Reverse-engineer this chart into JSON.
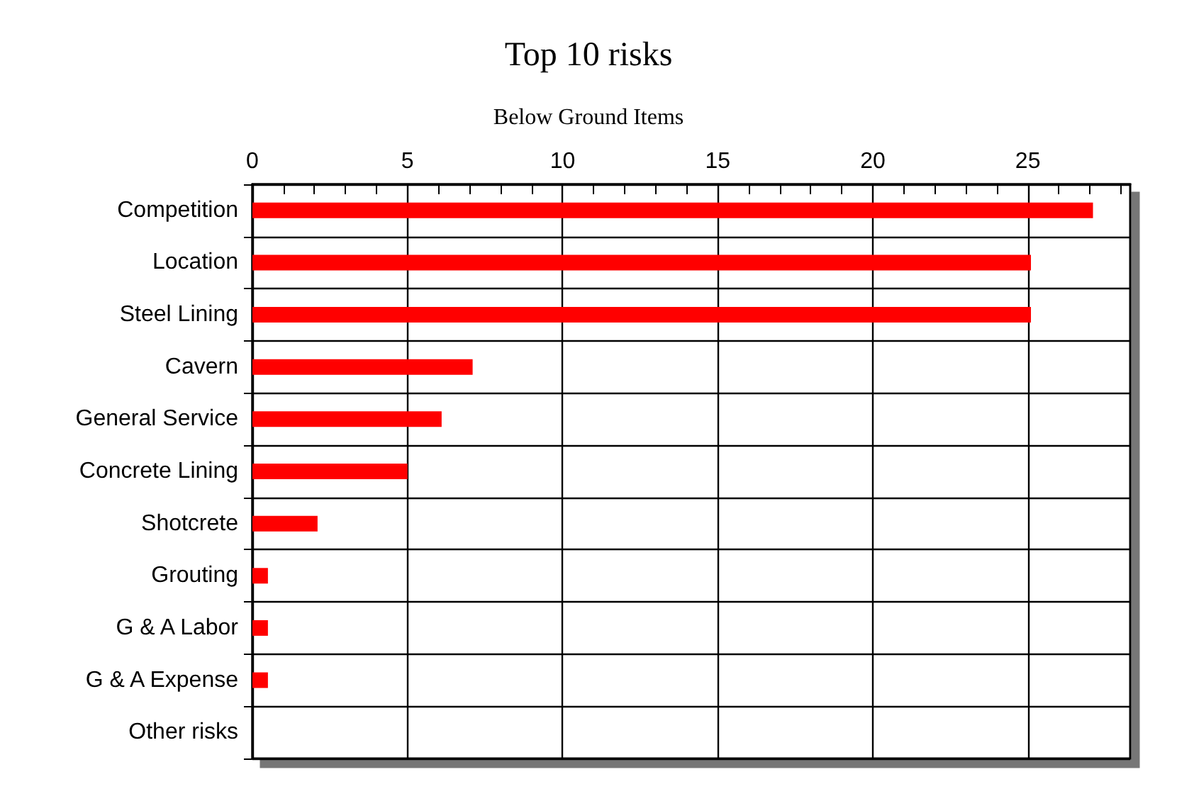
{
  "chart_data": {
    "type": "bar",
    "orientation": "horizontal",
    "title": "Top 10 risks",
    "subtitle": "Below Ground Items",
    "categories": [
      "Competition",
      "Location",
      "Steel Lining",
      "Cavern",
      "General Service",
      "Concrete Lining",
      "Shotcrete",
      "Grouting",
      "G & A Labor",
      "G & A Expense",
      "Other risks"
    ],
    "values": [
      27.1,
      25.1,
      25.1,
      7.1,
      6.1,
      5.0,
      2.1,
      0.5,
      0.5,
      0.5,
      0
    ],
    "color": "#ff0000",
    "xlim": [
      0,
      28.3
    ],
    "xticks": [
      0,
      5,
      10,
      15,
      20,
      25
    ],
    "grid": true
  }
}
